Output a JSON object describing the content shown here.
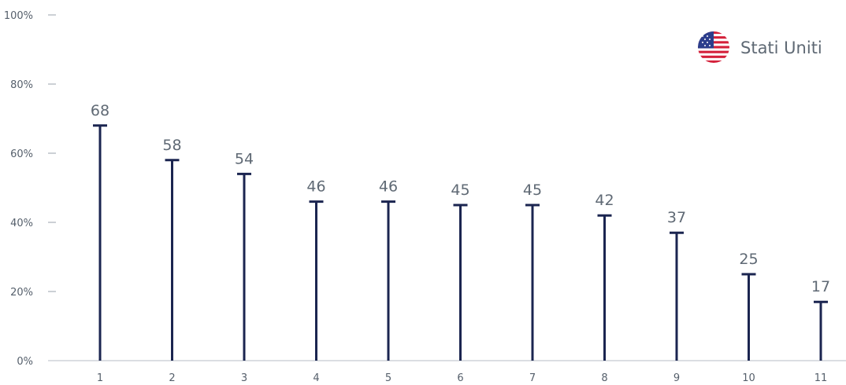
{
  "chart_data": {
    "type": "bar",
    "title": "",
    "xlabel": "",
    "ylabel": "",
    "categories": [
      "1",
      "2",
      "3",
      "4",
      "5",
      "6",
      "7",
      "8",
      "9",
      "10",
      "11"
    ],
    "series": [
      {
        "name": "Stati Uniti",
        "values": [
          68,
          58,
          54,
          46,
          46,
          45,
          45,
          42,
          37,
          25,
          17
        ],
        "color": "#1b2550"
      }
    ],
    "value_labels": [
      "68",
      "58",
      "54",
      "46",
      "46",
      "45",
      "45",
      "42",
      "37",
      "25",
      "17"
    ],
    "ylim": [
      0,
      100
    ],
    "y_ticks": [
      0,
      20,
      40,
      60,
      80,
      100
    ],
    "y_tick_labels": [
      "0%",
      "20%",
      "40%",
      "60%",
      "80%",
      "100%"
    ],
    "grid": false,
    "legend_position": "top-right",
    "legend_icon": "us-flag-icon"
  }
}
